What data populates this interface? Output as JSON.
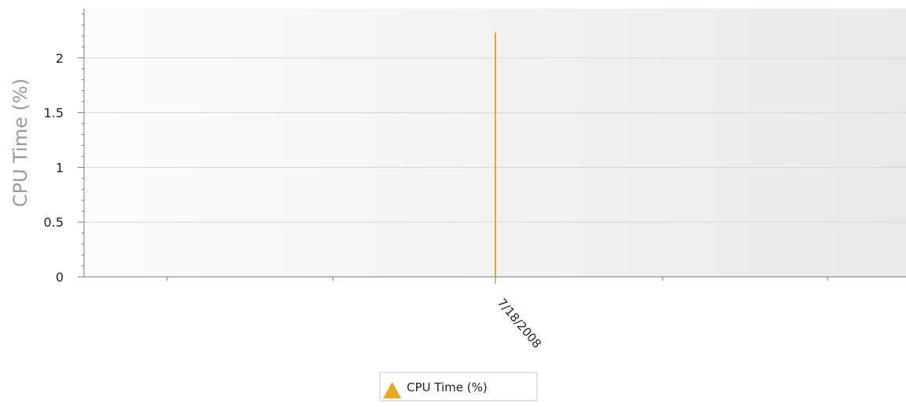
{
  "chart_data": {
    "type": "line",
    "ylabel": "CPU Time (%)",
    "xlabel": "",
    "ylim": [
      0,
      2.45
    ],
    "yticks": [
      0,
      0.5,
      1,
      1.5,
      2
    ],
    "y_tick_labels": [
      "0",
      "0.5",
      "1",
      "1.5",
      "2"
    ],
    "x_tick_labels": [
      "7/18/2008"
    ],
    "grid": true,
    "legend_placement": "bottom-center",
    "series": [
      {
        "name": "CPU Time (%)",
        "color": "#e8a824",
        "marker": "triangle",
        "points": [
          {
            "x": "7/18/2008",
            "y": 0
          },
          {
            "x": "7/18/2008",
            "y": 2.23
          }
        ]
      }
    ],
    "colors": {
      "series": "#e8a824",
      "axis": "#7a7a7a",
      "grid": "#d8d8d8",
      "plot_bg_left": "#fcfcfc",
      "plot_bg_right": "#e9e9e9",
      "legend_border": "#c6c6c6"
    }
  }
}
